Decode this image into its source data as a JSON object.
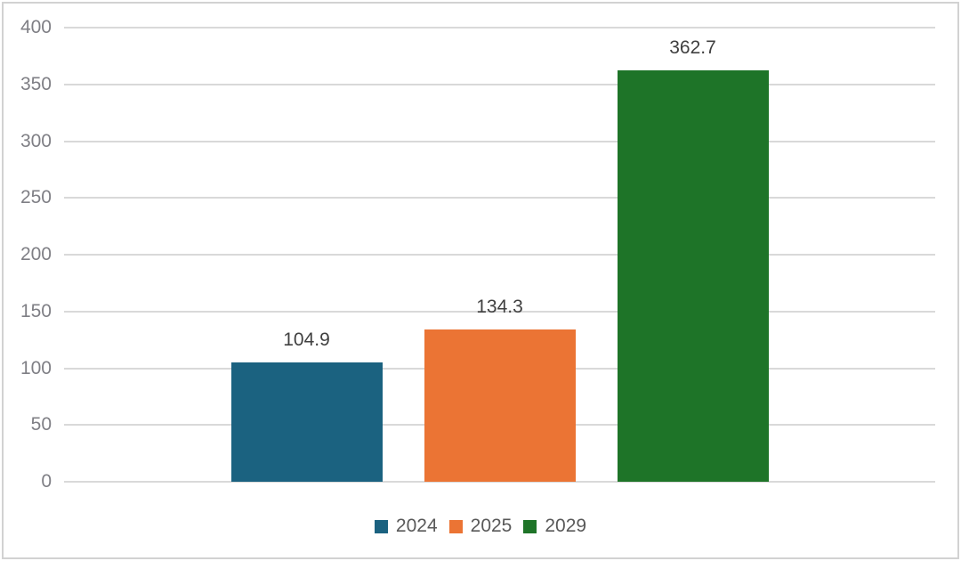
{
  "chart_data": {
    "type": "bar",
    "categories": [
      "2024",
      "2025",
      "2029"
    ],
    "values": [
      104.9,
      134.3,
      362.7
    ],
    "value_labels": [
      "104.9",
      "134.3",
      "362.7"
    ],
    "series_colors": [
      "#1b6280",
      "#eb7434",
      "#1e7428"
    ],
    "title": "",
    "xlabel": "",
    "ylabel": "",
    "ylim": [
      0,
      400
    ],
    "yticks": [
      0,
      50,
      100,
      150,
      200,
      250,
      300,
      350,
      400
    ],
    "grid": true,
    "legend_position": "bottom",
    "legend_entries": [
      "2024",
      "2025",
      "2029"
    ]
  },
  "colors": {
    "gridline": "#d9d9d9",
    "frame_border": "#d2d2d2",
    "axis_label_text": "#7f7f85",
    "value_label_text": "#404040",
    "legend_text": "#595959",
    "background": "#ffffff",
    "bar_2024": "#1b6280",
    "bar_2025": "#eb7434",
    "bar_2029": "#1e7428"
  }
}
